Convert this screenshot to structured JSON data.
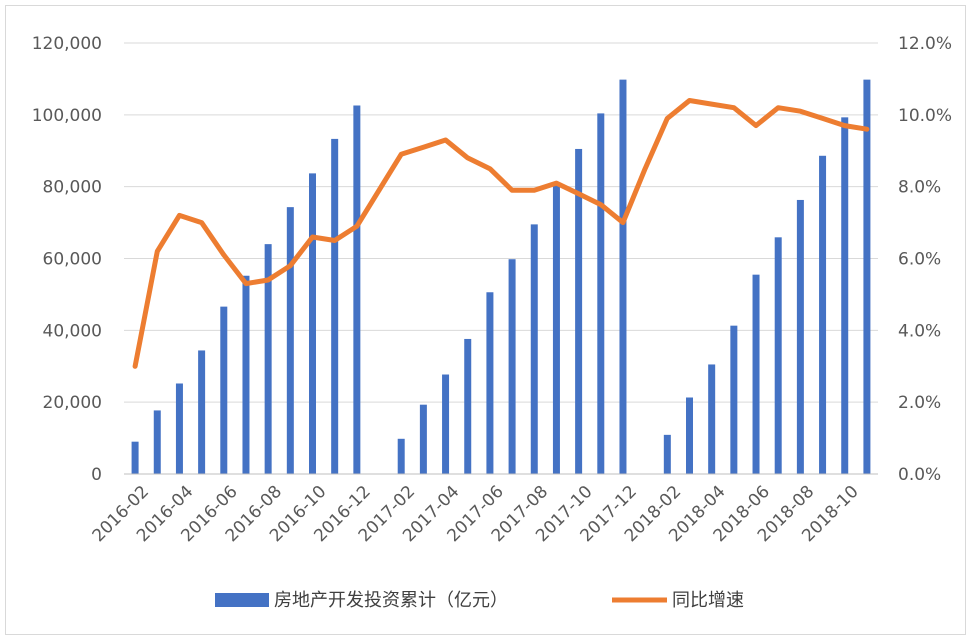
{
  "chart_data": {
    "type": "bar+line",
    "categories": [
      "2016-02",
      "2016-03",
      "2016-04",
      "2016-05",
      "2016-06",
      "2016-07",
      "2016-08",
      "2016-09",
      "2016-10",
      "2016-11",
      "2016-12",
      "2017-01",
      "2017-02",
      "2017-03",
      "2017-04",
      "2017-05",
      "2017-06",
      "2017-07",
      "2017-08",
      "2017-09",
      "2017-10",
      "2017-11",
      "2017-12",
      "2018-01",
      "2018-02",
      "2018-03",
      "2018-04",
      "2018-05",
      "2018-06",
      "2018-07",
      "2018-08",
      "2018-09",
      "2018-10",
      "2018-11"
    ],
    "x_tick_labels": [
      "2016-02",
      "2016-04",
      "2016-06",
      "2016-08",
      "2016-10",
      "2016-12",
      "2017-02",
      "2017-04",
      "2017-06",
      "2017-08",
      "2017-10",
      "2017-12",
      "2018-02",
      "2018-04",
      "2018-06",
      "2018-08",
      "2018-10"
    ],
    "series": [
      {
        "name": "房地产开发投资累计（亿元）",
        "type": "bar",
        "axis": "left",
        "color": "#4472C4",
        "values": [
          9000,
          17700,
          25200,
          34400,
          46600,
          55200,
          64000,
          74300,
          83700,
          93300,
          102600,
          null,
          9800,
          19300,
          27700,
          37600,
          50600,
          59800,
          69500,
          80600,
          90500,
          100400,
          109800,
          null,
          10900,
          21300,
          30500,
          41300,
          55500,
          65900,
          76300,
          88600,
          99300,
          109800
        ]
      },
      {
        "name": "同比增速",
        "type": "line",
        "axis": "right",
        "color": "#ED7D31",
        "values": [
          3.0,
          6.2,
          7.2,
          7.0,
          6.1,
          5.3,
          5.4,
          5.8,
          6.6,
          6.5,
          6.9,
          7.9,
          8.9,
          9.1,
          9.3,
          8.8,
          8.5,
          7.9,
          7.9,
          8.1,
          7.8,
          7.5,
          7.0,
          8.5,
          9.9,
          10.4,
          10.3,
          10.2,
          9.7,
          10.2,
          10.1,
          9.9,
          9.7,
          9.6
        ]
      }
    ],
    "left_axis": {
      "min": 0,
      "max": 120000,
      "step": 20000,
      "labels": [
        "0",
        "20,000",
        "40,000",
        "60,000",
        "80,000",
        "100,000",
        "120,000"
      ]
    },
    "right_axis": {
      "min": 0,
      "max": 12,
      "step": 2,
      "labels": [
        "0.0%",
        "2.0%",
        "4.0%",
        "6.0%",
        "8.0%",
        "10.0%",
        "12.0%"
      ]
    },
    "grid": true,
    "legend_position": "bottom"
  }
}
